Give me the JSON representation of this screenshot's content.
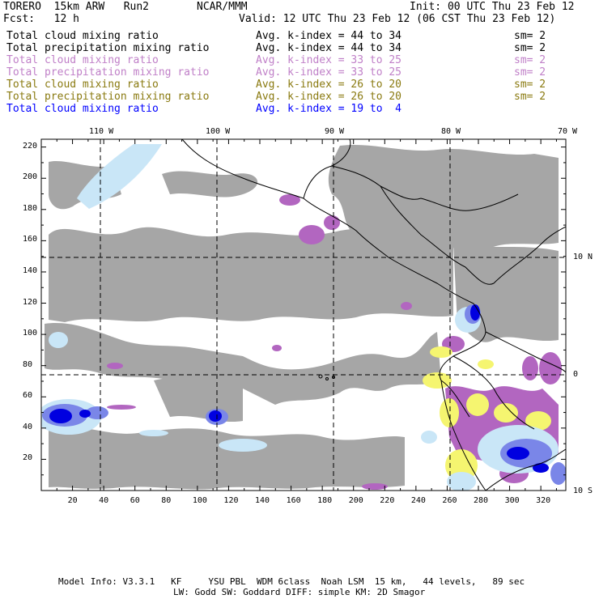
{
  "header": {
    "model": "TORERO  15km ARW   Run2",
    "org": "NCAR/MMM",
    "init": "Init: 00 UTC Thu 23 Feb 12",
    "fcst": "Fcst:   12 h",
    "valid": "Valid: 12 UTC Thu 23 Feb 12 (06 CST Thu 23 Feb 12)"
  },
  "legend": [
    {
      "field": "Total cloud mixing ratio",
      "kidx": "Avg. k-index = 44 to 34",
      "sm": "sm= 2",
      "color": "#000000"
    },
    {
      "field": "Total precipitation mixing ratio",
      "kidx": "Avg. k-index = 44 to 34",
      "sm": "sm= 2",
      "color": "#000000"
    },
    {
      "field": "Total cloud mixing ratio",
      "kidx": "Avg. k-index = 33 to 25",
      "sm": "sm= 2",
      "color": "#c080c8"
    },
    {
      "field": "Total precipitation mixing ratio",
      "kidx": "Avg. k-index = 33 to 25",
      "sm": "sm= 2",
      "color": "#c080c8"
    },
    {
      "field": "Total cloud mixing ratio",
      "kidx": "Avg. k-index = 26 to 20",
      "sm": "sm= 2",
      "color": "#8a7a10"
    },
    {
      "field": "Total precipitation mixing ratio",
      "kidx": "Avg. k-index = 26 to 20",
      "sm": "sm= 2",
      "color": "#8a7a10"
    },
    {
      "field": "Total cloud mixing ratio",
      "kidx": "Avg. k-index = 19 to  4",
      "sm": "",
      "color": "#0000ff"
    }
  ],
  "map": {
    "lon_labels": [
      "110 W",
      "100 W",
      "90 W",
      "80 W",
      "70 W"
    ],
    "lat_labels": [
      "10 N",
      "0",
      "10 S"
    ],
    "x_ticks": [
      "20",
      "40",
      "60",
      "80",
      "100",
      "120",
      "140",
      "160",
      "180",
      "200",
      "220",
      "240",
      "260",
      "280",
      "300",
      "320"
    ],
    "y_ticks": [
      "20",
      "40",
      "60",
      "80",
      "100",
      "120",
      "140",
      "160",
      "180",
      "200",
      "220"
    ],
    "colors": {
      "cloud": "#a6a6a6",
      "layer_2": "#b266c0",
      "layer_3": "#f5f570",
      "layer_4_light": "#c9e6f7",
      "layer_4_mid": "#7a86e8",
      "layer_4_dark": "#0000e0"
    }
  },
  "footer": {
    "line1": "Model Info: V3.3.1   KF     YSU PBL  WDM 6class  Noah LSM  15 km,   44 levels,   89 sec",
    "line2": "LW: Godd SW: Goddard DIFF: simple KM: 2D Smagor"
  }
}
